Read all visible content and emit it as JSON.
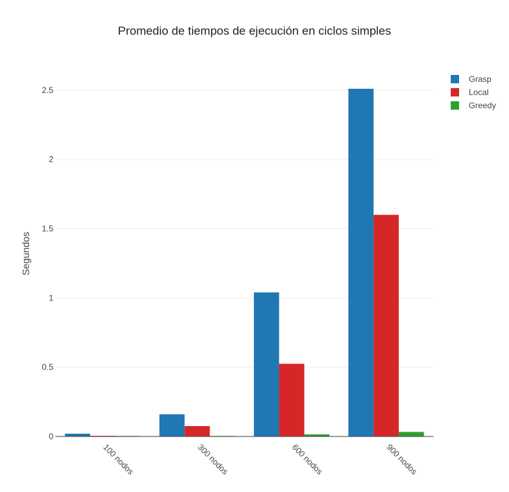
{
  "chart_data": {
    "type": "bar",
    "title": "Promedio de tiempos de ejecución en ciclos simples",
    "xlabel": "",
    "ylabel": "Segundos",
    "categories": [
      "100 nodos",
      "300 nodos",
      "600 nodos",
      "900 nodos"
    ],
    "series": [
      {
        "name": "Grasp",
        "color": "#1f77b4",
        "values": [
          0.02,
          0.16,
          1.04,
          2.51
        ]
      },
      {
        "name": "Local",
        "color": "#d62728",
        "values": [
          0.005,
          0.075,
          0.525,
          1.6
        ]
      },
      {
        "name": "Greedy",
        "color": "#2ca02c",
        "values": [
          0.001,
          0.003,
          0.015,
          0.033
        ]
      }
    ],
    "ylim": [
      0,
      2.72
    ],
    "yticks": [
      0,
      0.5,
      1,
      1.5,
      2,
      2.5
    ],
    "ytick_labels": [
      "0",
      "0.5",
      "1",
      "1.5",
      "2",
      "2.5"
    ],
    "grid": true,
    "legend_position": "top-right"
  }
}
